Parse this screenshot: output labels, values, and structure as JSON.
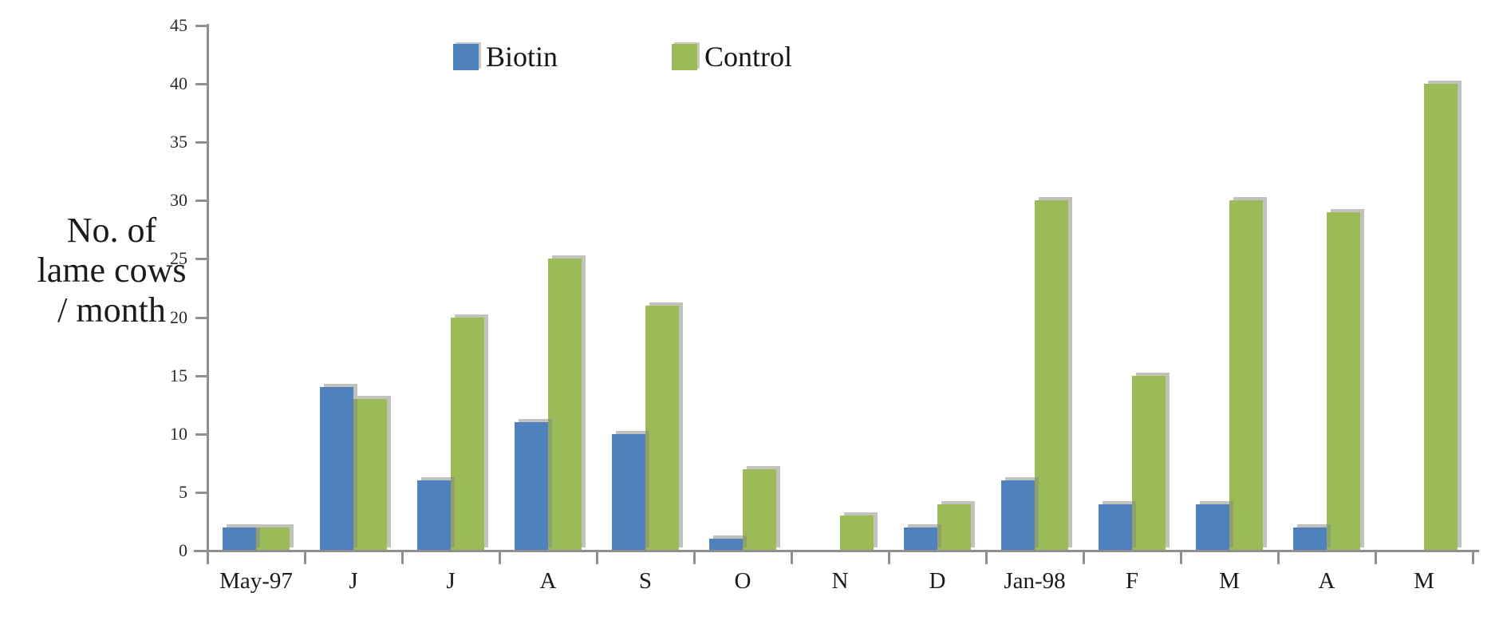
{
  "chart_data": {
    "type": "bar",
    "title": "",
    "categories": [
      "May-97",
      "J",
      "J",
      "A",
      "S",
      "O",
      "N",
      "D",
      "Jan-98",
      "F",
      "M",
      "A",
      "M"
    ],
    "series": [
      {
        "name": "Biotin",
        "color": "#4f81bd",
        "values": [
          2,
          14,
          6,
          11,
          10,
          1,
          0,
          2,
          6,
          4,
          4,
          2,
          0
        ]
      },
      {
        "name": "Control",
        "color": "#9bbb59",
        "values": [
          2,
          13,
          20,
          25,
          21,
          7,
          3,
          4,
          30,
          15,
          30,
          29,
          40
        ]
      }
    ],
    "xlabel": "",
    "ylabel": "No. of lame cows / month",
    "ylabel_lines": [
      "No. of",
      "lame cows",
      "/ month"
    ],
    "ylim": [
      0,
      45
    ],
    "yticks": [
      0,
      5,
      10,
      15,
      20,
      25,
      30,
      35,
      40,
      45
    ],
    "grid": false,
    "legend_position": "top-center"
  },
  "legend": {
    "items": [
      {
        "label": "Biotin",
        "color": "#4f81bd"
      },
      {
        "label": "Control",
        "color": "#9bbb59"
      }
    ]
  },
  "colors": {
    "axis": "#8f8f8f",
    "text": "#1b1b1b",
    "background": "#ffffff",
    "bar_shadow": "rgba(133,133,123,0.5)"
  }
}
